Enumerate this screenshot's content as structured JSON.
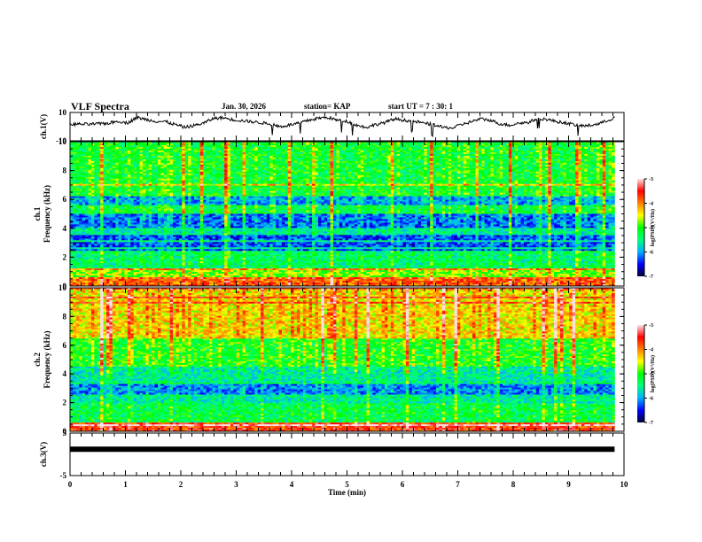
{
  "header": {
    "title": "VLF Spectra",
    "date": "Jan. 30, 2026",
    "station": "station= KAP",
    "start_ut": "start  UT =   7 : 30: 1"
  },
  "colors": {
    "colormap": [
      "#000030",
      "#0000ff",
      "#00b0ff",
      "#00ff80",
      "#00ff00",
      "#ffff00",
      "#ff8000",
      "#ff0000",
      "#ffe0e0"
    ],
    "trace": "#000000"
  },
  "chart_data": [
    {
      "type": "line",
      "name": "ch1-waveform",
      "ylabel": "ch.1(V)",
      "ylim": [
        -10,
        10
      ],
      "yticks": [
        "10",
        "-10"
      ],
      "x_range_min": [
        0,
        9.83
      ],
      "description_values": "noisy waveform around ~2 V wandering between about -2 and 7 V",
      "baseline_profile": [
        1.5,
        1.8,
        1.6,
        2.0,
        2.4,
        3.8,
        2.6,
        6.5,
        5.0,
        3.8,
        3.5,
        1.5,
        -0.5,
        0.8,
        2.5,
        5.8,
        6.3,
        5.0,
        4.2,
        3.5,
        2.8,
        1.8,
        0,
        1.2,
        2.5,
        4.5,
        6.0,
        6.5,
        4.5,
        3.8,
        1.0,
        -0.5,
        1.5,
        3.0,
        5.5,
        4.5,
        3.8,
        2.5,
        1.5,
        -0.5,
        -1.0,
        1.5,
        3.5,
        5.5,
        4.5,
        2.0,
        1.0,
        2.5,
        3.0,
        6.0,
        5.0,
        3.5,
        2.5,
        1.0,
        0.5,
        1.5,
        3.5,
        6.5
      ]
    },
    {
      "type": "heatmap",
      "name": "ch1-spectrogram",
      "ylabel": "ch.1",
      "ylabel2": "Frequency  (kHz)",
      "ylim": [
        0,
        10
      ],
      "yticks": [
        "0",
        "2",
        "4",
        "6",
        "8",
        "10"
      ],
      "colorbar": {
        "label": "log(PSD)(V²/Hz)",
        "ticks": [
          "-3",
          "-4",
          "-5",
          "-6",
          "-7"
        ],
        "range": [
          -7,
          -3
        ]
      },
      "band_levels_khz": [
        {
          "from": 0,
          "to": 0.6,
          "level": -3.9
        },
        {
          "from": 0.6,
          "to": 1.2,
          "level": -4.8
        },
        {
          "from": 1.2,
          "to": 2.5,
          "level": -5.4
        },
        {
          "from": 2.5,
          "to": 3.5,
          "level": -6.3
        },
        {
          "from": 3.5,
          "to": 4.0,
          "level": -5.6
        },
        {
          "from": 4.0,
          "to": 5.0,
          "level": -6.2
        },
        {
          "from": 5.0,
          "to": 5.6,
          "level": -5.3
        },
        {
          "from": 5.6,
          "to": 6.2,
          "level": -6.0
        },
        {
          "from": 6.2,
          "to": 10,
          "level": -5.2
        }
      ]
    },
    {
      "type": "heatmap",
      "name": "ch2-spectrogram",
      "ylabel": "ch.2",
      "ylabel2": "Frequency  (kHz)",
      "ylim": [
        0,
        10
      ],
      "yticks": [
        "0",
        "2",
        "4",
        "6",
        "8",
        "10"
      ],
      "colorbar": {
        "label": "log(PSD)(V²/Hz)",
        "ticks": [
          "-3",
          "-4",
          "-5",
          "-6",
          "-7"
        ],
        "range": [
          -7,
          -3
        ]
      },
      "band_levels_khz": [
        {
          "from": 0,
          "to": 0.6,
          "level": -3.7
        },
        {
          "from": 0.6,
          "to": 2.0,
          "level": -5.3
        },
        {
          "from": 2.0,
          "to": 2.6,
          "level": -5.6
        },
        {
          "from": 2.6,
          "to": 3.4,
          "level": -6.1
        },
        {
          "from": 3.4,
          "to": 4.5,
          "level": -5.6
        },
        {
          "from": 4.5,
          "to": 6.5,
          "level": -5.1
        },
        {
          "from": 6.5,
          "to": 10,
          "level": -4.4
        }
      ]
    },
    {
      "type": "line",
      "name": "ch3-waveform",
      "ylabel": "ch.3(V)",
      "ylim": [
        -5,
        5
      ],
      "yticks": [
        "5",
        "-5"
      ],
      "level_v": 1.2,
      "x_range_min": [
        0,
        9.83
      ]
    }
  ],
  "xaxis": {
    "label": "Time  (min)",
    "ticks": [
      "0",
      "1",
      "2",
      "3",
      "4",
      "5",
      "6",
      "7",
      "8",
      "9",
      "10"
    ],
    "xlim": [
      0,
      10
    ]
  }
}
